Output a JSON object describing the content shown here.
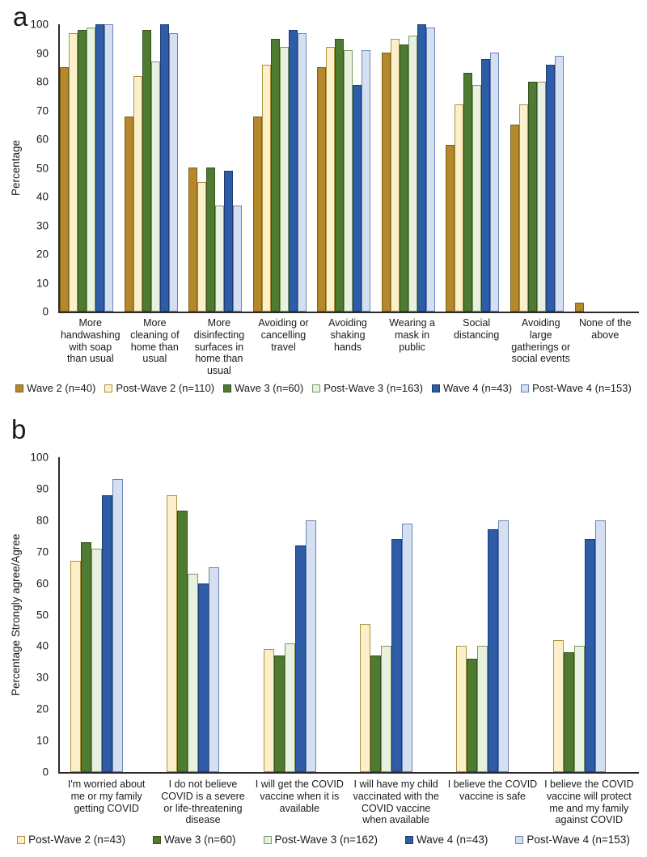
{
  "panels": [
    {
      "letter": "a"
    },
    {
      "letter": "b"
    }
  ],
  "colors": {
    "wave2_fill": "#B5882B",
    "wave2_border": "#7E6018",
    "postwave2_fill": "#FBF0CA",
    "postwave2_border": "#AD9240",
    "wave3_fill": "#4E7B31",
    "wave3_border": "#32511D",
    "postwave3_fill": "#E8F0DF",
    "postwave3_border": "#7C9C63",
    "wave4_fill": "#2E5CA6",
    "wave4_border": "#1D3C72",
    "postwave4_fill": "#D4DFF2",
    "postwave4_border": "#6C85B5",
    "axis": "#2b2b2b"
  },
  "chart_data": [
    {
      "type": "bar",
      "panel": "a",
      "title": "",
      "xlabel": "",
      "ylabel": "Percentage",
      "ylim": [
        0,
        100
      ],
      "yticks": [
        0,
        10,
        20,
        30,
        40,
        50,
        60,
        70,
        80,
        90,
        100
      ],
      "grid": false,
      "legend_position": "bottom",
      "categories": [
        "More handwashing with soap than usual",
        "More cleaning of home than usual",
        "More disinfecting surfaces in home than usual",
        "Avoiding or cancelling travel",
        "Avoiding shaking hands",
        "Wearing a mask in public",
        "Social distancing",
        "Avoiding large gatherings or social events",
        "None of the above"
      ],
      "series": [
        {
          "name": "Wave 2 (n=40)",
          "fill": "#B5882B",
          "border": "#7E6018",
          "values": [
            85,
            68,
            50,
            68,
            85,
            90,
            58,
            65,
            3
          ]
        },
        {
          "name": "Post-Wave 2 (n=110)",
          "fill": "#FBF0CA",
          "border": "#AD9240",
          "values": [
            97,
            82,
            45,
            86,
            92,
            95,
            72,
            72,
            0
          ]
        },
        {
          "name": "Wave 3 (n=60)",
          "fill": "#4E7B31",
          "border": "#32511D",
          "values": [
            98,
            98,
            50,
            95,
            95,
            93,
            83,
            80,
            0
          ]
        },
        {
          "name": "Post-Wave 3 (n=163)",
          "fill": "#E8F0DF",
          "border": "#7C9C63",
          "values": [
            99,
            87,
            37,
            92,
            91,
            96,
            79,
            80,
            0
          ]
        },
        {
          "name": "Wave 4 (n=43)",
          "fill": "#2E5CA6",
          "border": "#1D3C72",
          "values": [
            100,
            100,
            49,
            98,
            79,
            100,
            88,
            86,
            0
          ]
        },
        {
          "name": "Post-Wave 4 (n=153)",
          "fill": "#D4DFF2",
          "border": "#6C85B5",
          "values": [
            100,
            97,
            37,
            97,
            91,
            99,
            90,
            89,
            0
          ]
        }
      ]
    },
    {
      "type": "bar",
      "panel": "b",
      "title": "",
      "xlabel": "",
      "ylabel": "Percentage Strongly agree/Agree",
      "ylim": [
        0,
        100
      ],
      "yticks": [
        0,
        10,
        20,
        30,
        40,
        50,
        60,
        70,
        80,
        90,
        100
      ],
      "grid": false,
      "legend_position": "bottom",
      "categories": [
        "I'm worried about me or my family getting COVID",
        "I do not believe COVID is a severe or life-threatening disease",
        "I will get the COVID vaccine when it is available",
        "I will have my child vaccinated with the COVID vaccine when available",
        "I believe the COVID vaccine is safe",
        "I believe the COVID vaccine will protect me and my family against COVID"
      ],
      "series": [
        {
          "name": "Post-Wave 2 (n=43)",
          "fill": "#FBF0CA",
          "border": "#AD9240",
          "values": [
            67,
            88,
            39,
            47,
            40,
            42
          ]
        },
        {
          "name": "Wave 3 (n=60)",
          "fill": "#4E7B31",
          "border": "#32511D",
          "values": [
            73,
            83,
            37,
            37,
            36,
            38
          ]
        },
        {
          "name": "Post-Wave 3 (n=162)",
          "fill": "#E8F0DF",
          "border": "#7C9C63",
          "values": [
            71,
            63,
            41,
            40,
            40,
            40
          ]
        },
        {
          "name": "Wave 4 (n=43)",
          "fill": "#2E5CA6",
          "border": "#1D3C72",
          "values": [
            88,
            60,
            72,
            74,
            77,
            74
          ]
        },
        {
          "name": "Post-Wave 4 (n=153)",
          "fill": "#D4DFF2",
          "border": "#6C85B5",
          "values": [
            93,
            65,
            80,
            79,
            80,
            80
          ]
        }
      ]
    }
  ]
}
